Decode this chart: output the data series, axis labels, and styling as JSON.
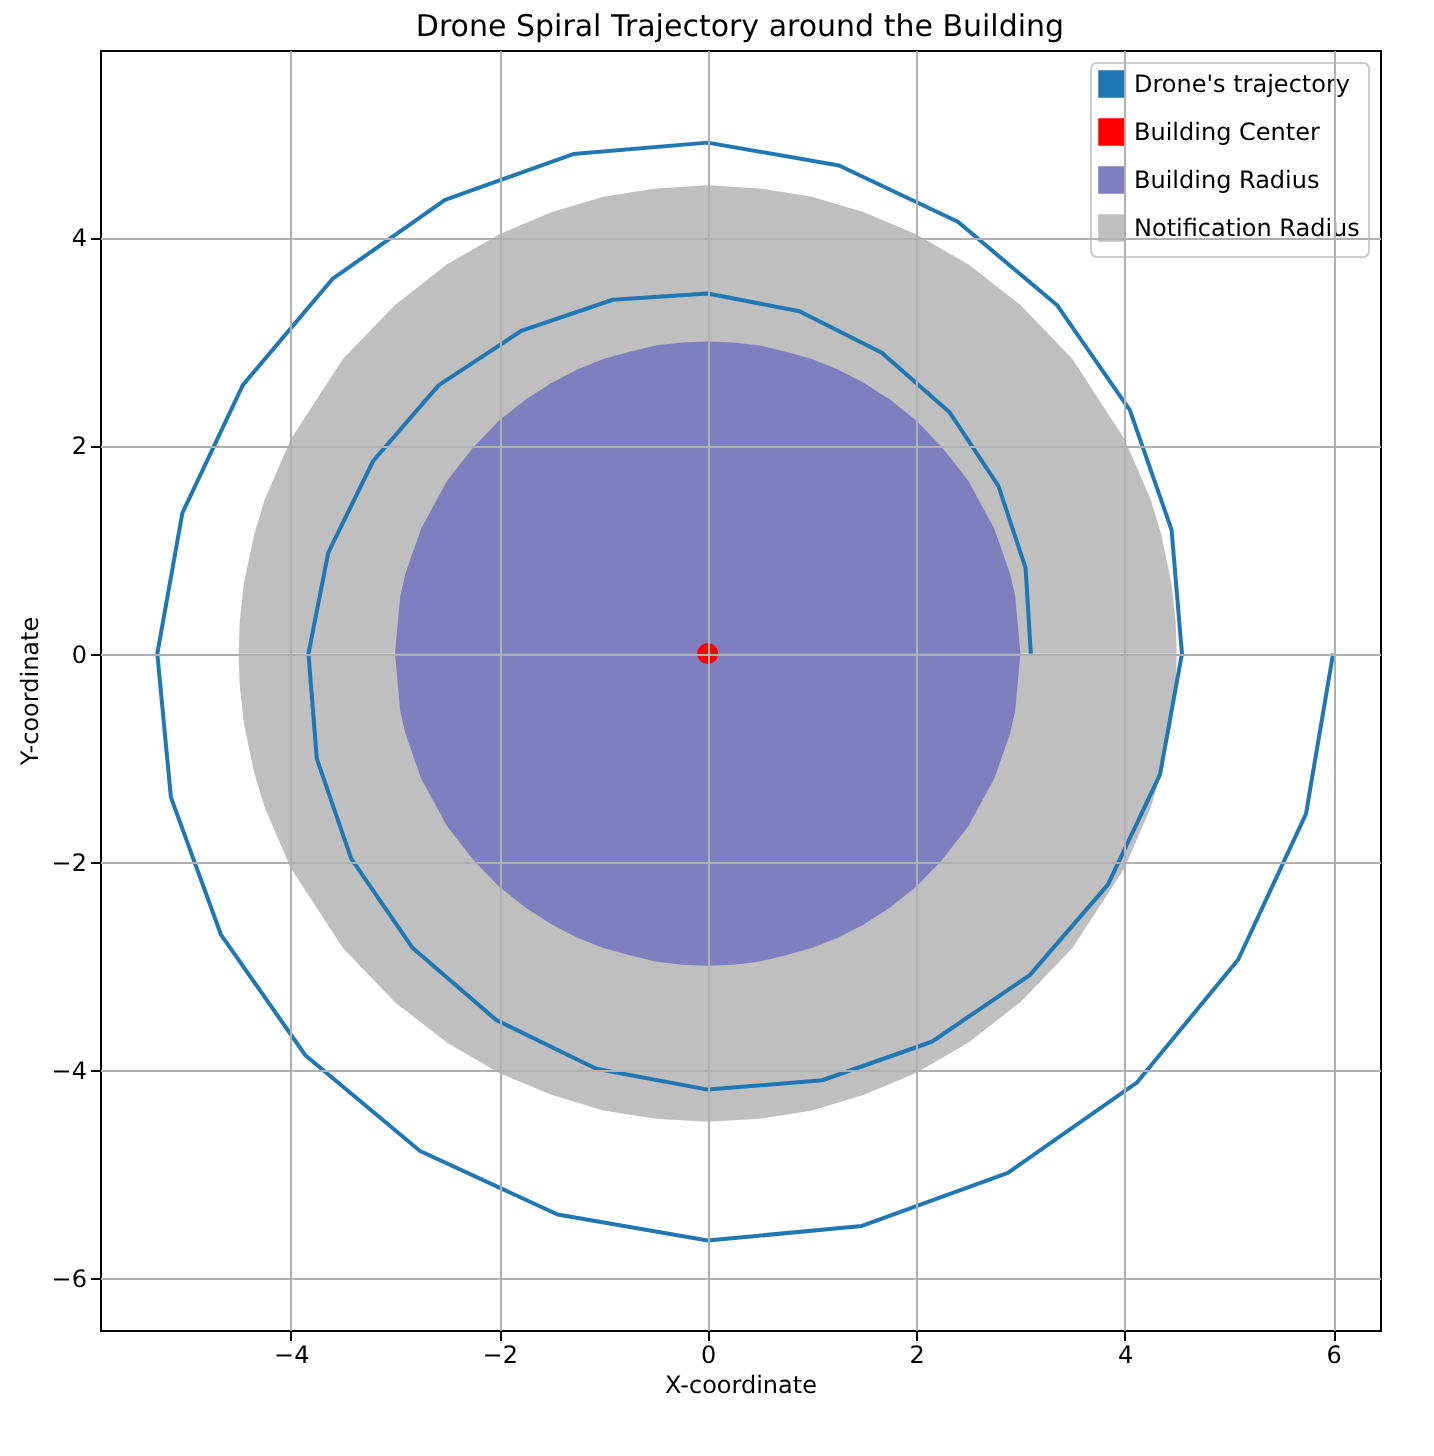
{
  "chart_data": {
    "type": "line",
    "title": "Drone Spiral Trajectory around the Building",
    "xlabel": "X-coordinate",
    "ylabel": "Y-coordinate",
    "xlim": [
      -5.83,
      6.45
    ],
    "ylim": [
      -6.5,
      5.8
    ],
    "xticks": [
      -4,
      -2,
      0,
      2,
      4,
      6
    ],
    "yticks": [
      -6,
      -4,
      -2,
      0,
      2,
      4
    ],
    "grid": true,
    "legend": "top right",
    "series": [
      {
        "name": "Notification Radius",
        "type": "area",
        "color": "#bfbfbf",
        "x": [
          -4.5,
          -4.49,
          -4.45,
          -4.35,
          -4.25,
          -4,
          -3.5,
          -3,
          -2.5,
          -2,
          -1.5,
          -1,
          -0.5,
          0,
          0.5,
          1,
          1.5,
          2,
          2.5,
          3,
          3.5,
          4,
          4.25,
          4.35,
          4.45,
          4.49,
          4.5
        ],
        "values": [
          0,
          0.3,
          0.67,
          1.15,
          1.48,
          2.06,
          2.83,
          3.35,
          3.74,
          4.03,
          4.24,
          4.39,
          4.47,
          4.5,
          4.47,
          4.39,
          4.24,
          4.03,
          3.74,
          3.35,
          2.83,
          2.06,
          1.48,
          1.15,
          0.67,
          0.3,
          0
        ]
      },
      {
        "type": "area",
        "color": "#bfbfbf",
        "x": [
          -4.5,
          -4.49,
          -4.45,
          -4.35,
          -4.25,
          -4,
          -3.5,
          -3,
          -2.5,
          -2,
          -1.5,
          -1,
          -0.5,
          0,
          0.5,
          1,
          1.5,
          2,
          2.5,
          3,
          3.5,
          4,
          4.25,
          4.35,
          4.45,
          4.49,
          4.5
        ],
        "values": [
          0,
          -0.3,
          -0.67,
          -1.15,
          -1.48,
          -2.06,
          -2.83,
          -3.35,
          -3.74,
          -4.03,
          -4.24,
          -4.39,
          -4.47,
          -4.5,
          -4.47,
          -4.39,
          -4.24,
          -4.03,
          -3.74,
          -3.35,
          -2.83,
          -2.06,
          -1.48,
          -1.15,
          -0.67,
          -0.3,
          0
        ]
      },
      {
        "name": "Building Radius",
        "type": "area",
        "color": "#7f7fbf",
        "x": [
          -3,
          -2.95,
          -2.9,
          -2.75,
          -2.5,
          -2.25,
          -2,
          -1.75,
          -1.5,
          -1.25,
          -1,
          -0.75,
          -0.5,
          -0.25,
          0,
          0.25,
          0.5,
          0.75,
          1,
          1.25,
          1.5,
          1.75,
          2,
          2.25,
          2.5,
          2.75,
          2.9,
          2.95,
          3
        ],
        "values": [
          0,
          0.55,
          0.77,
          1.2,
          1.66,
          1.98,
          2.24,
          2.44,
          2.6,
          2.73,
          2.83,
          2.9,
          2.96,
          2.99,
          3,
          2.99,
          2.96,
          2.9,
          2.83,
          2.73,
          2.6,
          2.44,
          2.24,
          1.98,
          1.66,
          1.2,
          0.77,
          0.55,
          0
        ]
      },
      {
        "type": "area",
        "color": "#7f7fbf",
        "x": [
          -3,
          -2.95,
          -2.9,
          -2.75,
          -2.5,
          -2.25,
          -2,
          -1.75,
          -1.5,
          -1.25,
          -1,
          -0.75,
          -0.5,
          -0.25,
          0,
          0.25,
          0.5,
          0.75,
          1,
          1.25,
          1.5,
          1.75,
          2,
          2.25,
          2.5,
          2.75,
          2.9,
          2.95,
          3
        ],
        "values": [
          0,
          -0.55,
          -0.77,
          -1.2,
          -1.66,
          -1.98,
          -2.24,
          -2.44,
          -2.6,
          -2.73,
          -2.83,
          -2.9,
          -2.96,
          -2.99,
          -3,
          -2.99,
          -2.96,
          -2.9,
          -2.83,
          -2.73,
          -2.6,
          -2.44,
          -2.24,
          -1.98,
          -1.66,
          -1.2,
          -0.77,
          -0.55,
          0
        ]
      },
      {
        "name": "Drone's trajectory",
        "color": "#1f77b4",
        "x": [
          6.0,
          5.74,
          5.09,
          4.12,
          2.88,
          1.48,
          0.0,
          -1.44,
          -2.76,
          -3.86,
          -4.67,
          -5.15,
          -5.28,
          -5.04,
          -4.46,
          -3.6,
          -2.52,
          -1.29,
          0.0,
          1.26,
          2.4,
          3.35,
          4.05,
          4.45,
          4.55,
          4.34,
          3.84,
          3.09,
          2.15,
          1.1,
          0.0,
          -1.07,
          -2.03,
          -2.83,
          -3.42,
          -3.75,
          -3.83,
          -3.64,
          -3.21,
          -2.58,
          -1.79,
          -0.91,
          0.0,
          0.88,
          1.67,
          2.32,
          2.79,
          3.05,
          3.1
        ],
        "values": [
          0.0,
          -1.54,
          -2.94,
          -4.12,
          -4.99,
          -5.5,
          -5.64,
          -5.39,
          -4.78,
          -3.86,
          -2.7,
          -1.38,
          0.0,
          1.35,
          2.58,
          3.6,
          4.36,
          4.8,
          4.91,
          4.69,
          4.15,
          3.35,
          2.34,
          1.19,
          0.0,
          -1.16,
          -2.22,
          -3.09,
          -3.73,
          -4.1,
          -4.19,
          -3.99,
          -3.52,
          -2.83,
          -1.97,
          -1.01,
          0.0,
          0.97,
          1.85,
          2.58,
          3.1,
          3.4,
          3.46,
          3.29,
          2.89,
          2.32,
          1.61,
          0.82,
          0.0
        ]
      },
      {
        "name": "Building Center",
        "type": "scatter",
        "color": "#ff0000",
        "marker": "circle",
        "x": [
          0
        ],
        "values": [
          0
        ]
      }
    ]
  }
}
